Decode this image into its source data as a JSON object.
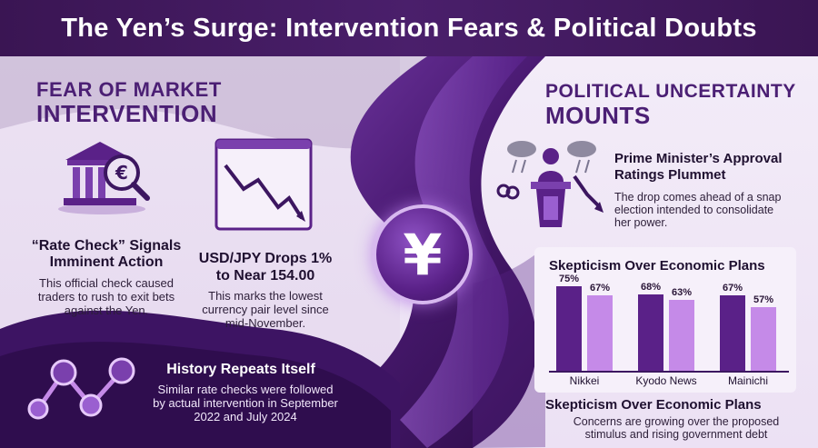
{
  "header": {
    "title": "The Yen’s Surge: Intervention Fears & Political Doubts"
  },
  "left": {
    "title_line1": "FEAR OF MARKET",
    "title_line2": "INTERVENTION",
    "rate_check": {
      "title_line1": "“Rate Check” Signals",
      "title_line2": "Imminent Action",
      "body_line1": "This official check caused",
      "body_line2": "traders to rush to exit bets",
      "body_line3": "against the Yen."
    },
    "usdjpy": {
      "title_line1": "USD/JPY Drops 1%",
      "title_line2": "to Near 154.00",
      "body_line1": "This marks the lowest",
      "body_line2": "currency pair level since",
      "body_line3": "mid-November."
    },
    "history": {
      "title": "History Repeats Itself",
      "body_line1": "Similar rate checks were followed",
      "body_line2": "by actual intervention in September",
      "body_line3": "2022 and July 2024"
    }
  },
  "center": {
    "symbol": "¥"
  },
  "right": {
    "title_line1": "POLITICAL UNCERTAINTY",
    "title_line2": "MOUNTS",
    "pm": {
      "title_line1": "Prime Minister’s Approval",
      "title_line2": "Ratings Plummet",
      "body_line1": "The drop comes ahead of a snap",
      "body_line2": "election intended to consolidate",
      "body_line3": "her power."
    },
    "bottom": {
      "title": "Skepticism Over Economic Plans",
      "body_line1": "Concerns are growing over the proposed",
      "body_line2": "stimulus and rising government debt"
    }
  },
  "chart_data": {
    "type": "bar",
    "title": "Skepticism Over Economic Plans",
    "categories": [
      "Nikkei",
      "Kyodo News",
      "Mainichi"
    ],
    "series": [
      {
        "values": [
          75,
          68,
          67
        ],
        "labels": [
          "75%",
          "68%",
          "67%"
        ],
        "color": "#5a2188"
      },
      {
        "values": [
          67,
          63,
          57
        ],
        "labels": [
          "67%",
          "63%",
          "57%"
        ],
        "color": "#c58ae8"
      }
    ],
    "ylim": [
      0,
      100
    ]
  },
  "colors": {
    "header_bg": "#3a1553",
    "accent": "#4b1f74",
    "light_accent": "#c58ae8"
  }
}
